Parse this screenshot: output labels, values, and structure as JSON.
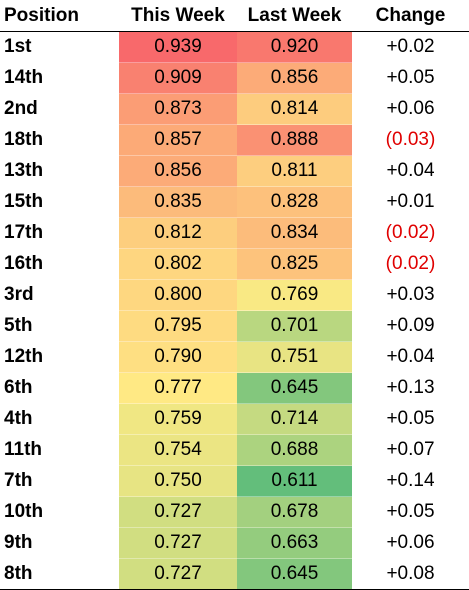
{
  "chart_data": {
    "type": "table",
    "columns": [
      "Position",
      "This Week",
      "Last Week",
      "Change"
    ],
    "rows": [
      {
        "position": "1st",
        "this_week": "0.939",
        "last_week": "0.920",
        "change": "+0.02"
      },
      {
        "position": "14th",
        "this_week": "0.909",
        "last_week": "0.856",
        "change": "+0.05"
      },
      {
        "position": "2nd",
        "this_week": "0.873",
        "last_week": "0.814",
        "change": "+0.06"
      },
      {
        "position": "18th",
        "this_week": "0.857",
        "last_week": "0.888",
        "change": "(0.03)"
      },
      {
        "position": "13th",
        "this_week": "0.856",
        "last_week": "0.811",
        "change": "+0.04"
      },
      {
        "position": "15th",
        "this_week": "0.835",
        "last_week": "0.828",
        "change": "+0.01"
      },
      {
        "position": "17th",
        "this_week": "0.812",
        "last_week": "0.834",
        "change": "(0.02)"
      },
      {
        "position": "16th",
        "this_week": "0.802",
        "last_week": "0.825",
        "change": "(0.02)"
      },
      {
        "position": "3rd",
        "this_week": "0.800",
        "last_week": "0.769",
        "change": "+0.03"
      },
      {
        "position": "5th",
        "this_week": "0.795",
        "last_week": "0.701",
        "change": "+0.09"
      },
      {
        "position": "12th",
        "this_week": "0.790",
        "last_week": "0.751",
        "change": "+0.04"
      },
      {
        "position": "6th",
        "this_week": "0.777",
        "last_week": "0.645",
        "change": "+0.13"
      },
      {
        "position": "4th",
        "this_week": "0.759",
        "last_week": "0.714",
        "change": "+0.05"
      },
      {
        "position": "11th",
        "this_week": "0.754",
        "last_week": "0.688",
        "change": "+0.07"
      },
      {
        "position": "7th",
        "this_week": "0.750",
        "last_week": "0.611",
        "change": "+0.14"
      },
      {
        "position": "10th",
        "this_week": "0.727",
        "last_week": "0.678",
        "change": "+0.05"
      },
      {
        "position": "9th",
        "this_week": "0.727",
        "last_week": "0.663",
        "change": "+0.06"
      },
      {
        "position": "8th",
        "this_week": "0.727",
        "last_week": "0.645",
        "change": "+0.08"
      }
    ],
    "color_scale": {
      "low": "#63be7b",
      "mid": "#ffeb84",
      "high": "#f8696b"
    },
    "negative_change_color": "#e00000"
  }
}
